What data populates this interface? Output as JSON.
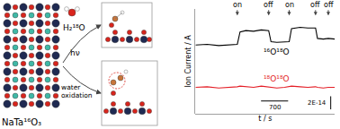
{
  "chart_data": {
    "type": "line",
    "xlabel": "t / s",
    "ylabel": "Ion Current / A",
    "x": [
      0,
      300,
      600,
      900,
      1080,
      1150,
      1300,
      1500,
      1700,
      1890,
      1950,
      2100,
      2300,
      2420,
      2480,
      2700,
      2900,
      3100,
      3150,
      3300,
      3430,
      3600
    ],
    "series": [
      {
        "name": "¹⁶O¹⁸O",
        "color": "#000000",
        "values": [
          1.05e-13,
          1.06e-13,
          1.04e-13,
          1.05e-13,
          1.06e-13,
          1.25e-13,
          1.27e-13,
          1.26e-13,
          1.28e-13,
          1.27e-13,
          1.1e-13,
          1.09e-13,
          1.1e-13,
          1.1e-13,
          1.3e-13,
          1.32e-13,
          1.31e-13,
          1.31e-13,
          1.15e-13,
          1.14e-13,
          1.15e-13,
          1.14e-13
        ]
      },
      {
        "name": "¹⁸O¹⁸O",
        "color": "#e41e26",
        "values": [
          4e-14,
          4.1e-14,
          3.9e-14,
          4e-14,
          4.1e-14,
          4.2e-14,
          4.1e-14,
          4e-14,
          4.2e-14,
          4.1e-14,
          4e-14,
          3.9e-14,
          4e-14,
          4.1e-14,
          4.2e-14,
          4.1e-14,
          4e-14,
          4.1e-14,
          4e-14,
          3.9e-14,
          4e-14,
          4e-14
        ]
      }
    ],
    "xlim": [
      0,
      3600
    ],
    "ylim": [
      0,
      1.6e-13
    ],
    "xticks": [],
    "yticks": [],
    "tick_labels": false,
    "grid": false,
    "annotations": [
      {
        "x": 1080,
        "text": "on"
      },
      {
        "x": 1890,
        "text": "off"
      },
      {
        "x": 2420,
        "text": "on"
      },
      {
        "x": 3100,
        "text": "off"
      },
      {
        "x": 3430,
        "text": "off"
      }
    ],
    "scale_bars": {
      "x": {
        "value": 700,
        "label": "700"
      },
      "y": {
        "value": 2e-14,
        "label": "2E-14"
      }
    }
  },
  "diagram": {
    "crystal_label": "NaTa¹⁶O₃",
    "water_label": "H₂¹⁸O",
    "light_label": "hν",
    "process_label": [
      "water",
      "oxidation"
    ]
  }
}
